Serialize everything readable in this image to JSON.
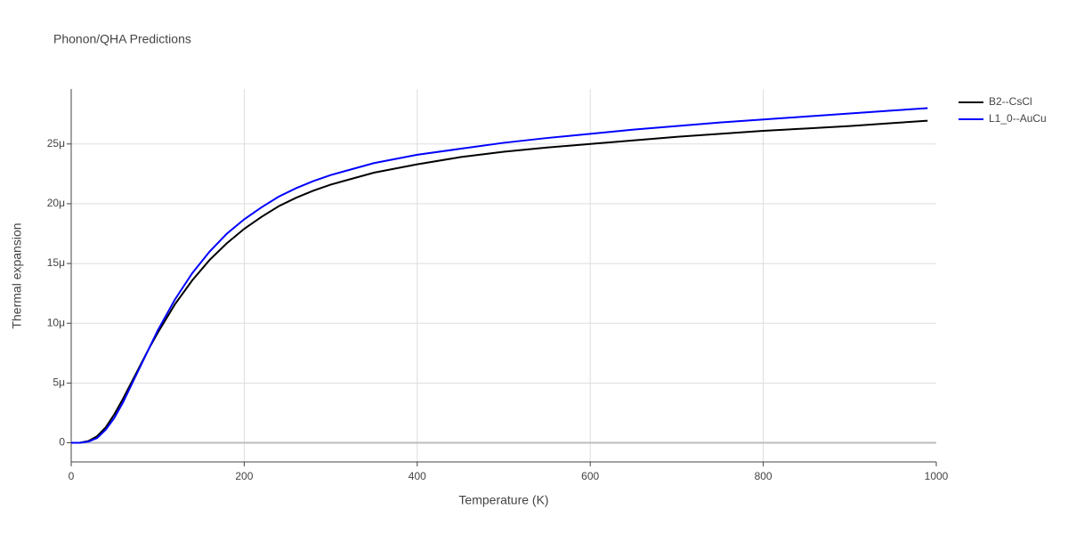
{
  "chart_data": {
    "type": "line",
    "title": "Phonon/QHA Predictions",
    "x_label": "Temperature (K)",
    "y_label": "Thermal expansion",
    "x": [
      0,
      10,
      20,
      30,
      40,
      50,
      60,
      70,
      80,
      90,
      100,
      120,
      140,
      160,
      180,
      200,
      220,
      240,
      260,
      280,
      300,
      350,
      400,
      450,
      500,
      550,
      600,
      650,
      700,
      750,
      800,
      850,
      900,
      950,
      990
    ],
    "series": [
      {
        "name": "B2--CsCl",
        "color": "#000000",
        "values": [
          0,
          0,
          1.5e-07,
          5.5e-07,
          1.3e-06,
          2.4e-06,
          3.7e-06,
          5.1e-06,
          6.5e-06,
          7.9e-06,
          9.2e-06,
          1.16e-05,
          1.36e-05,
          1.53e-05,
          1.67e-05,
          1.79e-05,
          1.89e-05,
          1.98e-05,
          2.05e-05,
          2.11e-05,
          2.16e-05,
          2.26e-05,
          2.33e-05,
          2.39e-05,
          2.435e-05,
          2.47e-05,
          2.5e-05,
          2.53e-05,
          2.56e-05,
          2.585e-05,
          2.61e-05,
          2.63e-05,
          2.65e-05,
          2.675e-05,
          2.695e-05
        ]
      },
      {
        "name": "L1_0--AuCu",
        "color": "#0000ff",
        "values": [
          0,
          0,
          1e-07,
          4e-07,
          1.1e-06,
          2.1e-06,
          3.4e-06,
          4.9e-06,
          6.4e-06,
          7.9e-06,
          9.4e-06,
          1.2e-05,
          1.42e-05,
          1.6e-05,
          1.75e-05,
          1.87e-05,
          1.97e-05,
          2.06e-05,
          2.13e-05,
          2.19e-05,
          2.24e-05,
          2.34e-05,
          2.41e-05,
          2.46e-05,
          2.51e-05,
          2.55e-05,
          2.585e-05,
          2.62e-05,
          2.65e-05,
          2.68e-05,
          2.705e-05,
          2.73e-05,
          2.755e-05,
          2.78e-05,
          2.8e-05
        ]
      }
    ],
    "xlim": [
      0,
      1000
    ],
    "xticks": [
      0,
      200,
      400,
      600,
      800,
      1000
    ],
    "ylim": [
      -1.6e-06,
      2.96e-05
    ],
    "yticks": [
      0,
      {
        "value": 5e-06,
        "label": "5μ"
      },
      {
        "value": 1e-05,
        "label": "10μ"
      },
      {
        "value": 1.5e-05,
        "label": "15μ"
      },
      {
        "value": 2e-05,
        "label": "20μ"
      },
      {
        "value": 2.5e-05,
        "label": "25μ"
      }
    ],
    "grid": true,
    "legend_position": "top-right"
  }
}
